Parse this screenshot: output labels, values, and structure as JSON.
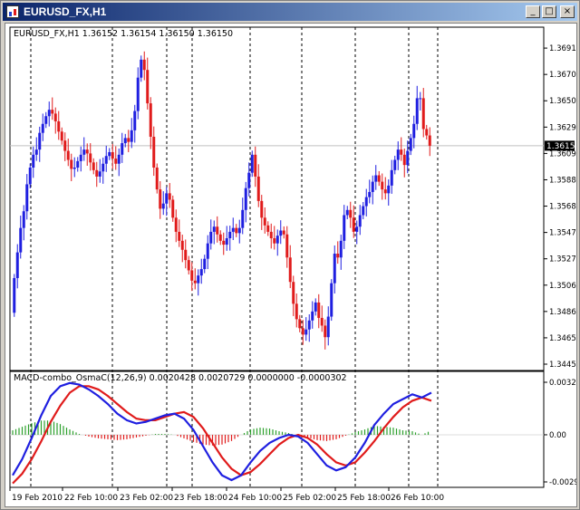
{
  "window": {
    "title": "EURUSD_FX,H1",
    "buttons": {
      "minimize": "_",
      "maximize": "□",
      "close": "×"
    }
  },
  "main_panel": {
    "info_label": "EURUSD_FX,H1  1.36152 1.36154 1.36150 1.36150",
    "current_price_label": "1.36150"
  },
  "indicator_panel": {
    "info_label": "MACD-combo_OsmaC(12,26,9) 0.0020428 0.0020729 0.0000000 -0.0000302"
  },
  "chart_data": [
    {
      "type": "candlestick",
      "symbol": "EURUSD_FX",
      "timeframe": "H1",
      "y_tick_labels": [
        "1.36910",
        "1.36705",
        "1.36500",
        "1.36295",
        "1.36090",
        "1.35885",
        "1.35680",
        "1.35475",
        "1.35270",
        "1.35065",
        "1.34860",
        "1.34655",
        "1.34450"
      ],
      "ylim": [
        1.3445,
        1.3696
      ],
      "current_price": 1.3615,
      "colors": {
        "up": "#1f1fe0",
        "down": "#e01b1b",
        "price_line": "#c0c0c0"
      },
      "closes": [
        1.3512,
        1.3532,
        1.3551,
        1.3564,
        1.3585,
        1.3598,
        1.3608,
        1.3612,
        1.3625,
        1.3632,
        1.3638,
        1.3643,
        1.364,
        1.3634,
        1.3626,
        1.3619,
        1.3611,
        1.3604,
        1.3597,
        1.3598,
        1.3603,
        1.3608,
        1.3612,
        1.3609,
        1.3602,
        1.3596,
        1.3591,
        1.3595,
        1.3601,
        1.3607,
        1.361,
        1.3605,
        1.3601,
        1.3608,
        1.3617,
        1.3621,
        1.3618,
        1.3627,
        1.3642,
        1.3668,
        1.3682,
        1.3674,
        1.3648,
        1.3622,
        1.3598,
        1.3581,
        1.3566,
        1.357,
        1.3578,
        1.3573,
        1.3559,
        1.3548,
        1.3541,
        1.3534,
        1.3526,
        1.3518,
        1.351,
        1.3508,
        1.3514,
        1.3519,
        1.3527,
        1.3539,
        1.3548,
        1.3552,
        1.3546,
        1.3541,
        1.3538,
        1.3543,
        1.3548,
        1.3551,
        1.3547,
        1.3551,
        1.3565,
        1.3582,
        1.3594,
        1.3608,
        1.3591,
        1.3572,
        1.3559,
        1.3553,
        1.3548,
        1.3543,
        1.3539,
        1.3545,
        1.3549,
        1.3546,
        1.3528,
        1.3509,
        1.3492,
        1.348,
        1.3473,
        1.3468,
        1.3472,
        1.3479,
        1.3486,
        1.3493,
        1.3481,
        1.3475,
        1.3466,
        1.3482,
        1.3508,
        1.3531,
        1.3528,
        1.3541,
        1.3561,
        1.3565,
        1.3559,
        1.3548,
        1.3552,
        1.3561,
        1.3568,
        1.3575,
        1.3579,
        1.3587,
        1.3592,
        1.3587,
        1.3581,
        1.3578,
        1.3584,
        1.3596,
        1.3604,
        1.3612,
        1.3608,
        1.36,
        1.3611,
        1.3621,
        1.3632,
        1.3652,
        1.3652,
        1.3628,
        1.3623,
        1.3615
      ],
      "opens": [
        1.3485,
        1.3512,
        1.3532,
        1.3551,
        1.3564,
        1.3585,
        1.3598,
        1.3608,
        1.3612,
        1.3625,
        1.3632,
        1.3638,
        1.3643,
        1.364,
        1.3634,
        1.3626,
        1.3619,
        1.3611,
        1.3604,
        1.3597,
        1.3598,
        1.3603,
        1.3608,
        1.3612,
        1.3609,
        1.3602,
        1.3596,
        1.3591,
        1.3595,
        1.3601,
        1.3607,
        1.361,
        1.3605,
        1.3601,
        1.3608,
        1.3617,
        1.3621,
        1.3618,
        1.3627,
        1.3642,
        1.3668,
        1.3682,
        1.3674,
        1.3648,
        1.3622,
        1.3598,
        1.3581,
        1.3566,
        1.357,
        1.3578,
        1.3573,
        1.3559,
        1.3548,
        1.3541,
        1.3534,
        1.3526,
        1.3518,
        1.351,
        1.3508,
        1.3514,
        1.3519,
        1.3527,
        1.3539,
        1.3548,
        1.3552,
        1.3546,
        1.3541,
        1.3538,
        1.3543,
        1.3548,
        1.3551,
        1.3547,
        1.3551,
        1.3565,
        1.3582,
        1.3594,
        1.3608,
        1.3591,
        1.3572,
        1.3559,
        1.3553,
        1.3548,
        1.3543,
        1.3539,
        1.3545,
        1.3549,
        1.3546,
        1.3528,
        1.3509,
        1.3492,
        1.348,
        1.3473,
        1.3468,
        1.3472,
        1.3479,
        1.3486,
        1.3493,
        1.3481,
        1.3475,
        1.3466,
        1.3482,
        1.3508,
        1.3531,
        1.3528,
        1.3541,
        1.3561,
        1.3565,
        1.3559,
        1.3548,
        1.3552,
        1.3561,
        1.3568,
        1.3575,
        1.3579,
        1.3587,
        1.3592,
        1.3587,
        1.3581,
        1.3578,
        1.3584,
        1.3596,
        1.3604,
        1.3612,
        1.3608,
        1.36,
        1.3611,
        1.3621,
        1.3632,
        1.3652,
        1.3652,
        1.3628,
        1.3623
      ],
      "wick": 0.0008
    },
    {
      "type": "line",
      "name": "MACD-combo_OsmaC(12,26,9)",
      "y_tick_labels": [
        "0.003242",
        "0.00",
        "-0.00291"
      ],
      "ylim": [
        -0.00291,
        0.003242
      ],
      "zero_line": true,
      "colors": {
        "macd": "#1f1fe0",
        "signal": "#e01b1b",
        "histogram_up": "#2ca02c",
        "histogram_down": "#e01b1b"
      },
      "macd": [
        -0.0025,
        -0.0015,
        -0.0002,
        0.0012,
        0.0024,
        0.003,
        0.0032,
        0.0031,
        0.0028,
        0.0024,
        0.0019,
        0.0013,
        0.0009,
        0.0007,
        0.0008,
        0.001,
        0.0012,
        0.0013,
        0.001,
        0.0003,
        -0.0007,
        -0.0017,
        -0.0025,
        -0.0028,
        -0.0025,
        -0.0017,
        -0.001,
        -0.0005,
        -0.0002,
        0.0,
        -0.0001,
        -0.0005,
        -0.0012,
        -0.0019,
        -0.0022,
        -0.002,
        -0.0014,
        -0.0005,
        0.0006,
        0.0013,
        0.0019,
        0.0022,
        0.0025,
        0.0023,
        0.0026
      ],
      "signal": [
        -0.003,
        -0.0024,
        -0.0015,
        -0.0004,
        0.0008,
        0.0018,
        0.0026,
        0.003,
        0.003,
        0.0028,
        0.0024,
        0.0019,
        0.0014,
        0.001,
        0.0009,
        0.0009,
        0.0011,
        0.0013,
        0.0014,
        0.0011,
        0.0004,
        -0.0005,
        -0.0014,
        -0.0021,
        -0.0025,
        -0.0023,
        -0.0018,
        -0.0012,
        -0.0006,
        -0.0002,
        0.0,
        -0.0002,
        -0.0006,
        -0.0012,
        -0.0017,
        -0.0019,
        -0.0017,
        -0.0011,
        -0.0004,
        0.0004,
        0.0011,
        0.0017,
        0.0021,
        0.0023,
        0.0021
      ]
    }
  ],
  "x_tick_labels": [
    "19 Feb 2010",
    "22 Feb 10:00",
    "23 Feb 02:00",
    "23 Feb 18:00",
    "24 Feb 10:00",
    "25 Feb 02:00",
    "25 Feb 18:00",
    "26 Feb 10:00"
  ]
}
